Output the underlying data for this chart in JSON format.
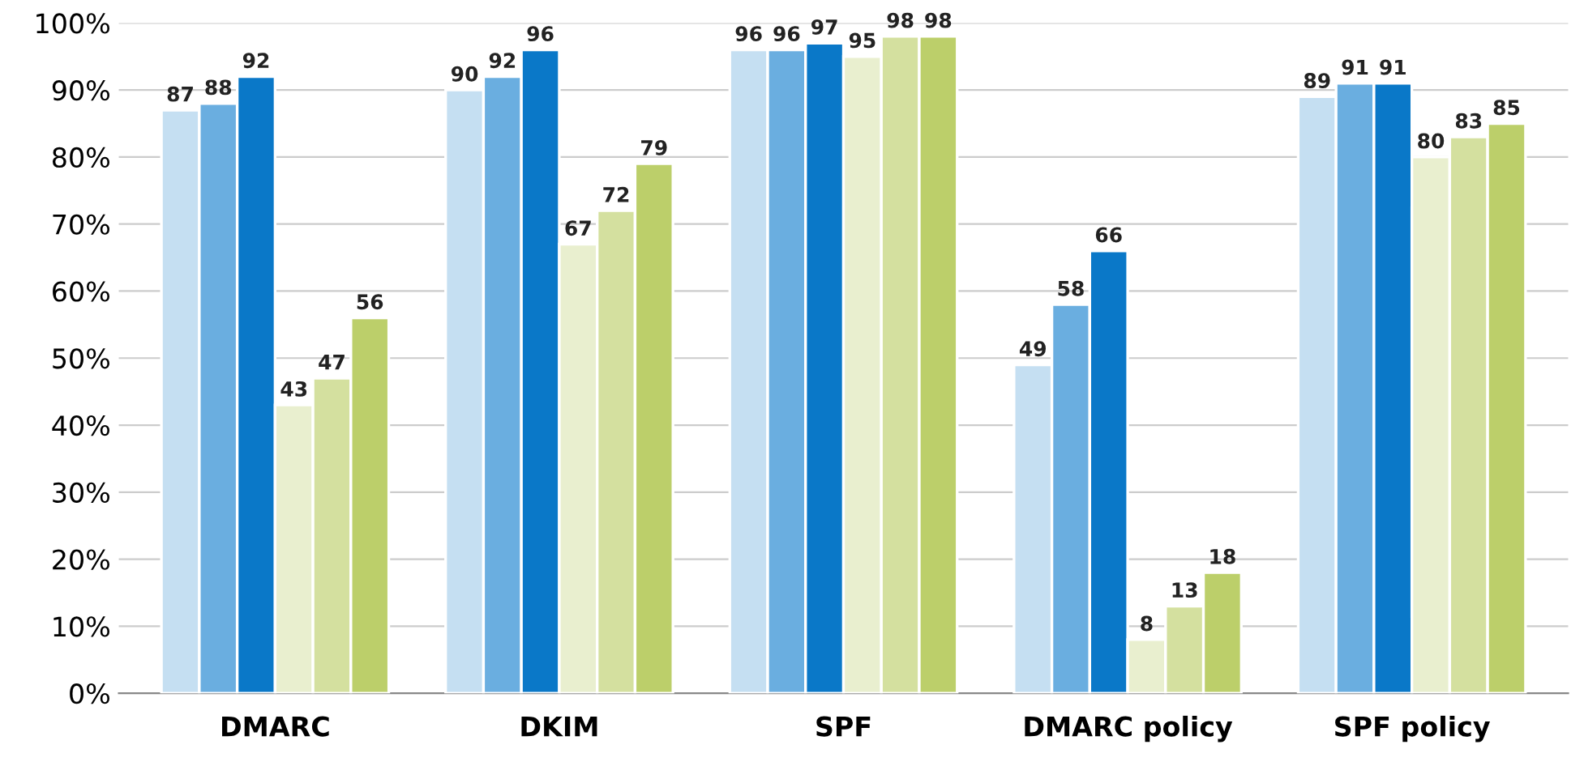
{
  "chart_data": {
    "type": "bar",
    "categories": [
      "DMARC",
      "DKIM",
      "SPF",
      "DMARC policy",
      "SPF policy"
    ],
    "series": [
      {
        "color": "#c5dff2",
        "values": [
          87,
          90,
          96,
          49,
          89
        ]
      },
      {
        "color": "#6aaee0",
        "values": [
          88,
          92,
          96,
          58,
          91
        ]
      },
      {
        "color": "#0a78c8",
        "values": [
          92,
          96,
          97,
          66,
          91
        ]
      },
      {
        "color": "#e9efcf",
        "values": [
          43,
          67,
          95,
          8,
          80
        ]
      },
      {
        "color": "#d4e09f",
        "values": [
          47,
          72,
          98,
          13,
          83
        ]
      },
      {
        "color": "#bccf6a",
        "values": [
          56,
          79,
          98,
          18,
          85
        ]
      }
    ],
    "ylim": [
      0,
      100
    ],
    "yticks": [
      {
        "value": 0,
        "label": "0%"
      },
      {
        "value": 10,
        "label": "10%"
      },
      {
        "value": 20,
        "label": "20%"
      },
      {
        "value": 30,
        "label": "30%"
      },
      {
        "value": 40,
        "label": "40%"
      },
      {
        "value": 50,
        "label": "50%"
      },
      {
        "value": 60,
        "label": "60%"
      },
      {
        "value": 70,
        "label": "70%"
      },
      {
        "value": 80,
        "label": "80%"
      },
      {
        "value": 90,
        "label": "90%"
      },
      {
        "value": 100,
        "label": "100%"
      }
    ],
    "grid": "y",
    "data_labels": true
  }
}
